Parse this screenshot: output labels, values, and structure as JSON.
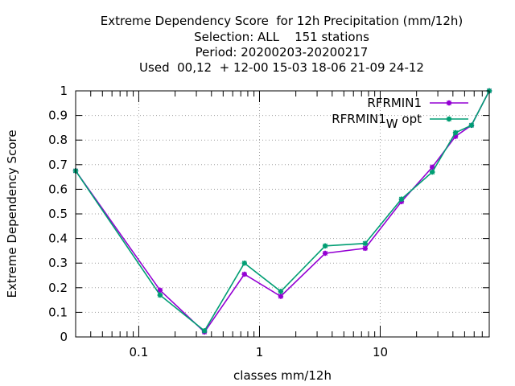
{
  "chart_data": {
    "type": "line",
    "title_lines": [
      "Extreme Dependency Score  for 12h Precipitation (mm/12h)",
      "Selection: ALL    151 stations",
      "Period: 20200203-20200217",
      "Used  00,12  + 12-00 15-03 18-06 21-09 24-12"
    ],
    "xlabel": "classes mm/12h",
    "ylabel": "Extreme Dependency Score",
    "x_scale": "log",
    "xlim": [
      0.03,
      80
    ],
    "ylim": [
      0,
      1
    ],
    "grid": true,
    "legend_position": "top-right",
    "x_tick_labels": [
      {
        "value": 0.1,
        "label": "0.1"
      },
      {
        "value": 1,
        "label": "1"
      },
      {
        "value": 10,
        "label": "10"
      }
    ],
    "y_tick_labels": [
      {
        "value": 0,
        "label": "0"
      },
      {
        "value": 0.1,
        "label": "0.1"
      },
      {
        "value": 0.2,
        "label": "0.2"
      },
      {
        "value": 0.3,
        "label": "0.3"
      },
      {
        "value": 0.4,
        "label": "0.4"
      },
      {
        "value": 0.5,
        "label": "0.5"
      },
      {
        "value": 0.6,
        "label": "0.6"
      },
      {
        "value": 0.7,
        "label": "0.7"
      },
      {
        "value": 0.8,
        "label": "0.8"
      },
      {
        "value": 0.9,
        "label": "0.9"
      },
      {
        "value": 1,
        "label": "1"
      }
    ],
    "x": [
      0.03,
      0.15,
      0.35,
      0.75,
      1.5,
      3.5,
      7.5,
      15,
      27,
      42,
      57,
      80
    ],
    "series": [
      {
        "name": "RFRMIN1",
        "name_main": "RFRMIN1",
        "color": "#9400d3",
        "values": [
          0.675,
          0.19,
          0.02,
          0.255,
          0.165,
          0.34,
          0.36,
          0.55,
          0.69,
          0.815,
          0.86,
          1.0
        ]
      },
      {
        "name": "RFRMIN1_wopt",
        "name_main": "RFRMIN1",
        "name_sub": "W",
        "name_tail": "opt",
        "color": "#009e73",
        "values": [
          0.675,
          0.17,
          0.025,
          0.3,
          0.185,
          0.37,
          0.38,
          0.56,
          0.67,
          0.83,
          0.86,
          1.0
        ]
      }
    ]
  }
}
